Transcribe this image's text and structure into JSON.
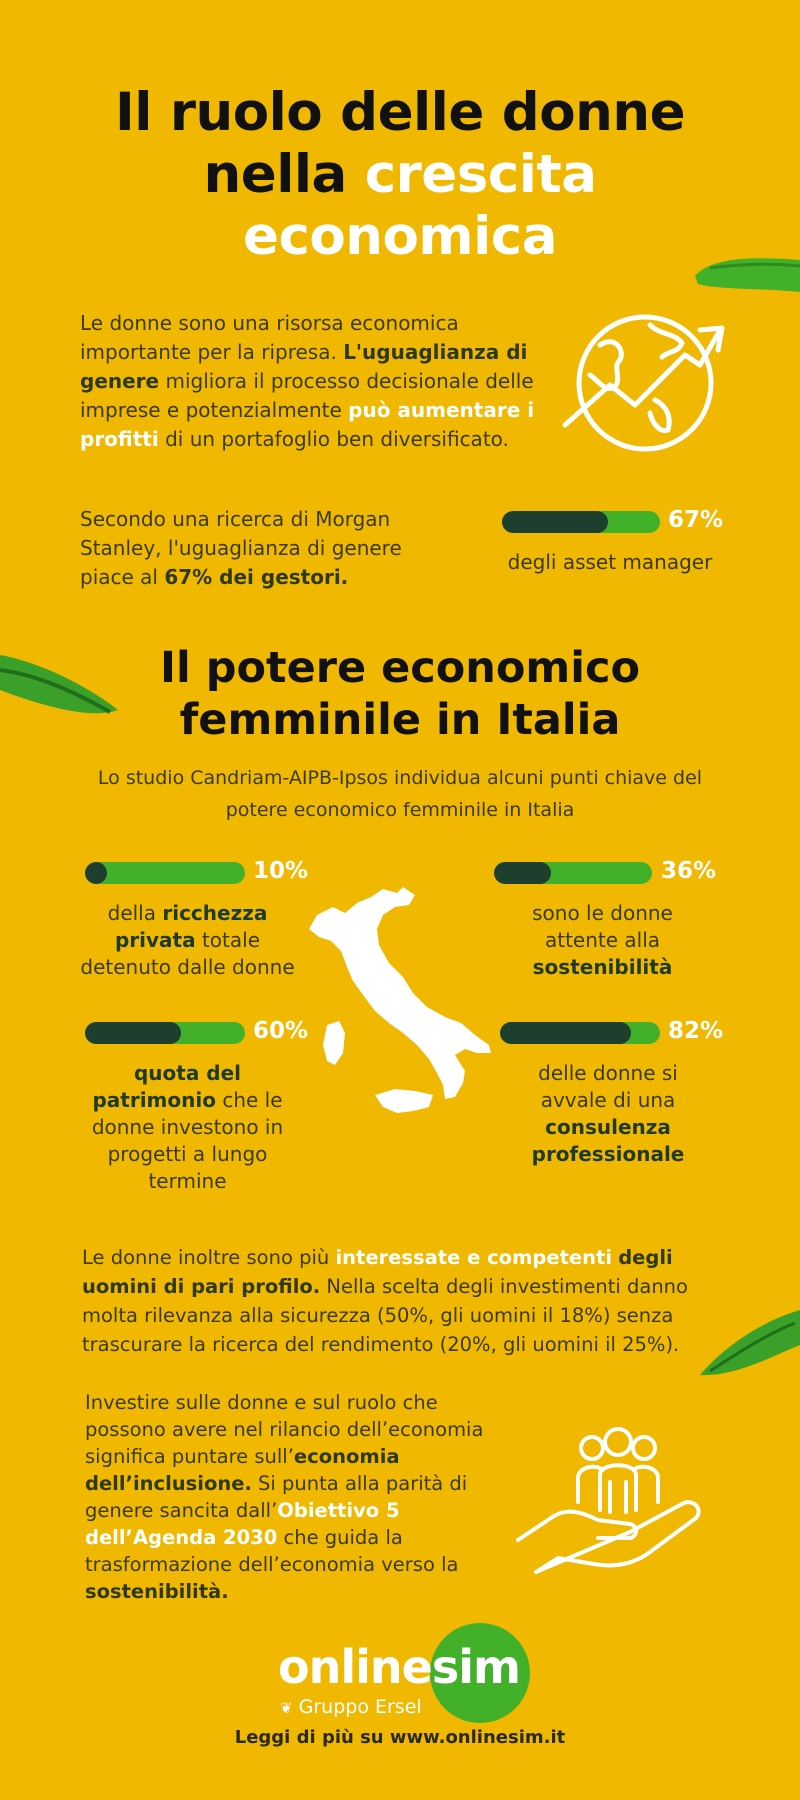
{
  "title": {
    "line1": "Il ruolo delle donne",
    "line2_dark": "nella ",
    "line2_light": "crescita",
    "line3": "economica"
  },
  "intro": {
    "t1": "Le donne sono una risorsa economica importante per la ripresa. ",
    "b1": "L'uguaglianza di genere",
    "t2": " migliora il processo decisionale delle imprese e potenzialmente ",
    "h1": "può aumentare i profitti",
    "t3": " di un portafoglio ben diversificato."
  },
  "morgan": {
    "t1": "Secondo una ricerca di Morgan Stanley, l'uguaglianza di genere piace al ",
    "b1": "67% dei gestori.",
    "percent_label": "67%",
    "value": 0.67,
    "caption": "degli asset manager"
  },
  "section2": {
    "title_line1": "Il potere economico",
    "title_line2": "femminile in Italia",
    "subtitle": "Lo studio Candriam-AIPB-Ipsos individua alcuni punti chiave del potere economico femminile in Italia"
  },
  "stats": [
    {
      "percent_label": "10%",
      "value": 0.1,
      "pre": "della ",
      "bold": "ricchezza privata",
      "post": " totale detenuto dalle donne"
    },
    {
      "percent_label": "36%",
      "value": 0.36,
      "pre": "sono le donne attente alla ",
      "bold": "sostenibilità",
      "post": ""
    },
    {
      "percent_label": "60%",
      "value": 0.6,
      "pre": "",
      "bold": "quota del patrimonio",
      "post": " che le donne investono in progetti a lungo termine"
    },
    {
      "percent_label": "82%",
      "value": 0.82,
      "pre": "delle donne si avvale di una ",
      "bold": "consulenza professionale",
      "post": ""
    }
  ],
  "para3": {
    "t1": "Le donne inoltre sono più ",
    "h1": "interessate e competenti",
    "t2": " ",
    "b1": "degli uomini di pari profilo.",
    "t3": " Nella scelta degli investimenti danno molta rilevanza alla sicurezza (50%, gli uomini il 18%) senza trascurare la ricerca del rendimento (20%, gli uomini il 25%)."
  },
  "para4": {
    "t1": "Investire sulle donne e sul ruolo che possono avere nel rilancio dell’economia significa puntare sull’",
    "b1": "economia dell’inclusione.",
    "t2": " Si punta alla parità di genere sancita dall’",
    "h1": "Obiettivo 5 dell’Agenda 2030",
    "t3": " che guida la trasformazione dell’economia verso la ",
    "b2": "sostenibilità."
  },
  "logo": {
    "online": "online",
    "sim": "sim",
    "group": "Gruppo Ersel"
  },
  "footer": "Leggi di più su www.onlinesim.it",
  "colors": {
    "background": "#f0b800",
    "bar_track": "#43b02a",
    "bar_fill": "#1e3e2e",
    "title": "#111111",
    "highlight": "#ffffff"
  }
}
